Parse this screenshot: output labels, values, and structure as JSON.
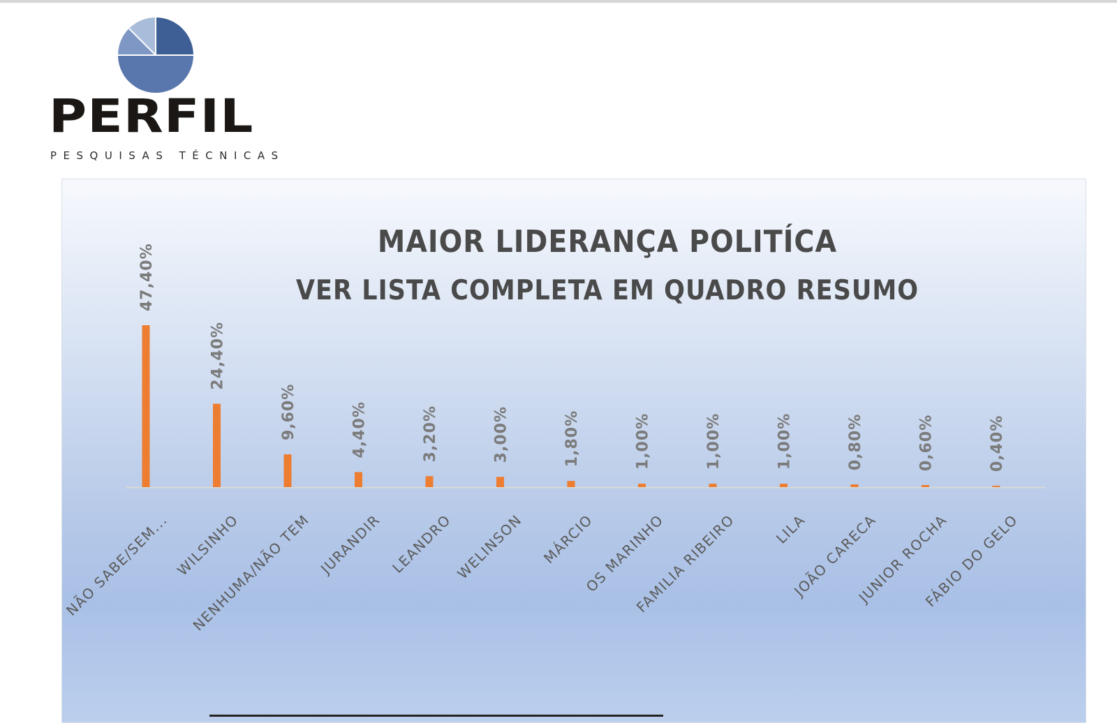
{
  "logo": {
    "name": "PERFIL",
    "tagline": "PESQUISAS TÉCNICAS",
    "colors": [
      "#3e5f96",
      "#5a77ad",
      "#7e97c5",
      "#a9bcda"
    ]
  },
  "chart_data": {
    "type": "bar",
    "title": "MAIOR LIDERANÇA POLITÍCA",
    "subtitle": "VER LISTA COMPLETA EM QUADRO RESUMO",
    "categories": [
      "NÃO SABE/SEM...",
      "WILSINHO",
      "NENHUMA/NÃO TEM",
      "JURANDIR",
      "LEANDRO",
      "WELINSON",
      "MÁRCIO",
      "OS MARINHO",
      "FAMILIA RIBEIRO",
      "LILA",
      "JOÃO CARECA",
      "JUNIOR ROCHA",
      "FÁBIO DO GELO"
    ],
    "values": [
      47.4,
      24.4,
      9.6,
      4.4,
      3.2,
      3.0,
      1.8,
      1.0,
      1.0,
      1.0,
      0.8,
      0.6,
      0.4
    ],
    "value_labels": [
      "47,40%",
      "24,40%",
      "9,60%",
      "4,40%",
      "3,20%",
      "3,00%",
      "1,80%",
      "1,00%",
      "1,00%",
      "1,00%",
      "0,80%",
      "0,60%",
      "0,40%"
    ],
    "ylim": [
      0,
      50
    ],
    "grid": false,
    "legend": "none",
    "bar_color": "#ed7d31",
    "axis_color": "#d9d9d9"
  }
}
